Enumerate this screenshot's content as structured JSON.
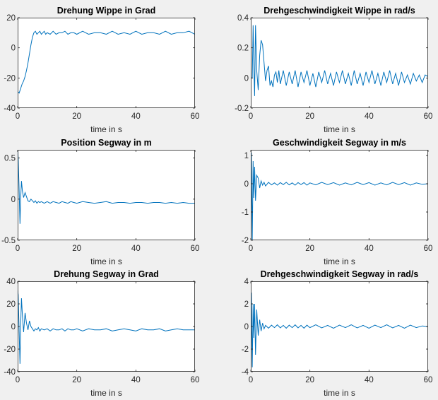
{
  "window": {
    "background": "#f0f0f0"
  },
  "styles": {
    "line_color": "#0072bd",
    "axis_color": "#262626",
    "plot_bg": "#ffffff"
  },
  "chart_data": [
    {
      "type": "line",
      "title": "Drehung Wippe in Grad",
      "xlabel": "time in s",
      "ylabel": "",
      "xlim": [
        0,
        60
      ],
      "ylim": [
        -40,
        20
      ],
      "xticks": [
        0,
        20,
        40,
        60
      ],
      "yticks": [
        -40,
        -20,
        0,
        20
      ],
      "series": [
        {
          "name": "Drehung Wippe",
          "x": [
            0,
            0.5,
            1,
            1.5,
            2,
            2.5,
            3,
            3.5,
            4,
            4.5,
            5,
            5.5,
            6,
            6.5,
            7,
            7.5,
            8,
            8.5,
            9,
            9.5,
            10,
            11,
            12,
            13,
            14,
            15,
            16,
            17,
            18,
            19,
            20,
            22,
            24,
            26,
            28,
            30,
            32,
            34,
            36,
            38,
            40,
            42,
            44,
            46,
            48,
            50,
            52,
            54,
            56,
            58,
            60
          ],
          "y": [
            -29,
            -30,
            -27,
            -24,
            -22,
            -19,
            -15,
            -10,
            -4,
            2,
            7,
            10,
            11,
            9,
            10,
            11,
            9,
            10,
            11,
            9,
            10,
            9,
            11,
            9,
            10,
            10,
            11,
            9,
            10,
            10,
            9,
            11,
            9,
            10,
            10,
            9,
            11,
            9,
            10,
            9,
            11,
            9,
            10,
            10,
            9,
            11,
            9,
            10,
            10,
            11,
            9
          ]
        }
      ]
    },
    {
      "type": "line",
      "title": "Drehgeschwindigkeit Wippe in rad/s",
      "xlabel": "time in s",
      "ylabel": "",
      "xlim": [
        0,
        60
      ],
      "ylim": [
        -0.2,
        0.4
      ],
      "xticks": [
        0,
        20,
        40,
        60
      ],
      "yticks": [
        -0.2,
        0,
        0.2,
        0.4
      ],
      "series": [
        {
          "name": "Drehgeschwindigkeit Wippe",
          "x": [
            0,
            0.5,
            0.8,
            1,
            1.3,
            1.6,
            2,
            2.5,
            3,
            3.5,
            4,
            4.5,
            5,
            5.5,
            6,
            6.5,
            7,
            7.5,
            8,
            8.5,
            9,
            9.5,
            10,
            11,
            12,
            13,
            14,
            15,
            16,
            17,
            18,
            19,
            20,
            21,
            22,
            23,
            24,
            25,
            26,
            27,
            28,
            29,
            30,
            31,
            32,
            33,
            34,
            35,
            36,
            37,
            38,
            39,
            40,
            41,
            42,
            43,
            44,
            45,
            46,
            47,
            48,
            49,
            50,
            51,
            52,
            53,
            54,
            55,
            56,
            57,
            58,
            59,
            60
          ],
          "y": [
            0,
            0,
            0.35,
            0.1,
            -0.12,
            0.35,
            0.05,
            -0.08,
            0.15,
            0.25,
            0.22,
            0.1,
            -0.02,
            0.05,
            0.08,
            -0.05,
            -0.02,
            -0.06,
            0.02,
            0.04,
            -0.03,
            0.05,
            -0.04,
            0.05,
            -0.05,
            0.04,
            -0.04,
            0.05,
            -0.06,
            0.04,
            -0.03,
            0.05,
            -0.05,
            0.03,
            -0.06,
            0.04,
            -0.03,
            0.05,
            -0.04,
            0.03,
            -0.05,
            0.04,
            -0.03,
            0.05,
            -0.04,
            0.03,
            -0.05,
            0.05,
            -0.04,
            0.03,
            -0.05,
            0.04,
            -0.03,
            0.05,
            -0.04,
            0.03,
            -0.05,
            0.04,
            -0.03,
            0.05,
            -0.04,
            0.03,
            -0.05,
            0.04,
            -0.03,
            0.02,
            -0.04,
            0.03,
            -0.02,
            0.02,
            -0.03,
            0.02,
            0.01
          ]
        }
      ]
    },
    {
      "type": "line",
      "title": "Position Segway in m",
      "xlabel": "time in s",
      "ylabel": "",
      "xlim": [
        0,
        60
      ],
      "ylim": [
        -0.5,
        0.6
      ],
      "xticks": [
        0,
        20,
        40,
        60
      ],
      "yticks": [
        -0.5,
        0,
        0.5
      ],
      "series": [
        {
          "name": "Position Segway",
          "x": [
            0,
            0.2,
            0.5,
            0.8,
            1,
            1.3,
            1.6,
            2,
            2.5,
            3,
            3.5,
            4,
            4.5,
            5,
            5.5,
            6,
            6.5,
            7,
            7.5,
            8,
            9,
            10,
            11,
            12,
            13,
            14,
            15,
            16,
            17,
            18,
            19,
            20,
            22,
            24,
            26,
            28,
            30,
            32,
            34,
            36,
            38,
            40,
            42,
            44,
            46,
            48,
            50,
            52,
            54,
            56,
            58,
            60
          ],
          "y": [
            0.6,
            0.5,
            0.1,
            -0.3,
            0,
            0.22,
            0.1,
            0.02,
            0.08,
            0.03,
            -0.02,
            -0.03,
            0,
            -0.02,
            -0.04,
            -0.02,
            -0.05,
            -0.03,
            -0.04,
            -0.03,
            -0.05,
            -0.03,
            -0.05,
            -0.03,
            -0.04,
            -0.05,
            -0.03,
            -0.04,
            -0.05,
            -0.03,
            -0.04,
            -0.05,
            -0.03,
            -0.04,
            -0.05,
            -0.04,
            -0.03,
            -0.05,
            -0.04,
            -0.04,
            -0.05,
            -0.04,
            -0.04,
            -0.05,
            -0.04,
            -0.04,
            -0.05,
            -0.04,
            -0.05,
            -0.04,
            -0.05,
            -0.05
          ]
        }
      ]
    },
    {
      "type": "line",
      "title": "Geschwindigkeit Segway in m/s",
      "xlabel": "time in s",
      "ylabel": "",
      "xlim": [
        0,
        60
      ],
      "ylim": [
        -2,
        1.2
      ],
      "xticks": [
        0,
        20,
        40,
        60
      ],
      "yticks": [
        -2,
        -1,
        0,
        1
      ],
      "series": [
        {
          "name": "Geschwindigkeit Segway",
          "x": [
            0,
            0.2,
            0.5,
            0.8,
            1,
            1.3,
            1.6,
            2,
            2.5,
            3,
            3.5,
            4,
            4.5,
            5,
            6,
            7,
            8,
            9,
            10,
            11,
            12,
            13,
            14,
            15,
            16,
            17,
            18,
            19,
            20,
            22,
            24,
            26,
            28,
            30,
            32,
            34,
            36,
            38,
            40,
            42,
            44,
            46,
            48,
            50,
            52,
            54,
            56,
            58,
            60
          ],
          "y": [
            0,
            1.1,
            -2,
            0.8,
            -0.5,
            0.6,
            -0.6,
            0.3,
            0.2,
            -0.15,
            0.1,
            -0.05,
            0.05,
            -0.08,
            0.05,
            -0.04,
            0.03,
            -0.05,
            0.04,
            -0.03,
            0.05,
            -0.04,
            0.03,
            -0.05,
            0.04,
            -0.03,
            0.04,
            -0.05,
            0.03,
            -0.04,
            0.05,
            -0.03,
            0.04,
            -0.05,
            0.03,
            -0.04,
            0.05,
            -0.03,
            0.04,
            -0.05,
            0.03,
            -0.04,
            0.05,
            -0.03,
            0.04,
            -0.05,
            0.03,
            -0.02,
            0
          ]
        }
      ]
    },
    {
      "type": "line",
      "title": "Drehung Segway in Grad",
      "xlabel": "time in s",
      "ylabel": "",
      "xlim": [
        0,
        60
      ],
      "ylim": [
        -40,
        40
      ],
      "xticks": [
        0,
        20,
        40,
        60
      ],
      "yticks": [
        -40,
        -20,
        0,
        20,
        40
      ],
      "series": [
        {
          "name": "Drehung Segway",
          "x": [
            0,
            0.2,
            0.5,
            0.8,
            1,
            1.3,
            1.6,
            2,
            2.5,
            3,
            3.5,
            4,
            4.5,
            5,
            5.5,
            6,
            6.5,
            7,
            7.5,
            8,
            9,
            10,
            11,
            12,
            13,
            14,
            15,
            16,
            17,
            18,
            19,
            20,
            22,
            24,
            26,
            28,
            30,
            32,
            34,
            36,
            38,
            40,
            42,
            44,
            46,
            48,
            50,
            52,
            54,
            56,
            58,
            60
          ],
          "y": [
            32,
            28,
            -5,
            -33,
            0,
            25,
            10,
            -5,
            12,
            3,
            -3,
            5,
            0,
            -2,
            -4,
            -2,
            -3,
            -1,
            -4,
            -2,
            -3,
            -2,
            -4,
            -2,
            -3,
            -3,
            -2,
            -4,
            -2,
            -3,
            -3,
            -2,
            -4,
            -2,
            -3,
            -3,
            -2,
            -4,
            -3,
            -2,
            -3,
            -4,
            -2,
            -3,
            -3,
            -2,
            -4,
            -3,
            -2,
            -3,
            -3,
            -3
          ]
        }
      ]
    },
    {
      "type": "line",
      "title": "Drehgeschwindigkeit Segway in rad/s",
      "xlabel": "time in s",
      "ylabel": "",
      "xlim": [
        0,
        60
      ],
      "ylim": [
        -4,
        4
      ],
      "xticks": [
        0,
        20,
        40,
        60
      ],
      "yticks": [
        -4,
        -2,
        0,
        2,
        4
      ],
      "series": [
        {
          "name": "Drehgeschwindigkeit Segway",
          "x": [
            0,
            0.2,
            0.5,
            0.8,
            1,
            1.3,
            1.6,
            2,
            2.5,
            3,
            3.5,
            4,
            4.5,
            5,
            6,
            7,
            8,
            9,
            10,
            11,
            12,
            13,
            14,
            15,
            16,
            17,
            18,
            19,
            20,
            22,
            24,
            26,
            28,
            30,
            32,
            34,
            36,
            38,
            40,
            42,
            44,
            46,
            48,
            50,
            52,
            54,
            56,
            58,
            60
          ],
          "y": [
            0,
            3,
            -3.6,
            2,
            -1,
            2,
            -2.5,
            1.5,
            -0.8,
            0.6,
            -0.4,
            0.3,
            -0.2,
            0.1,
            -0.15,
            0.12,
            -0.1,
            0.15,
            -0.12,
            0.1,
            -0.15,
            0.12,
            -0.1,
            0.15,
            -0.12,
            0.1,
            -0.15,
            0.12,
            -0.1,
            0.15,
            -0.12,
            0.1,
            -0.15,
            0.12,
            -0.1,
            0.15,
            -0.12,
            0.1,
            -0.15,
            0.12,
            -0.1,
            0.15,
            -0.12,
            0.1,
            -0.15,
            0.12,
            -0.1,
            0.05,
            0
          ]
        }
      ]
    }
  ]
}
